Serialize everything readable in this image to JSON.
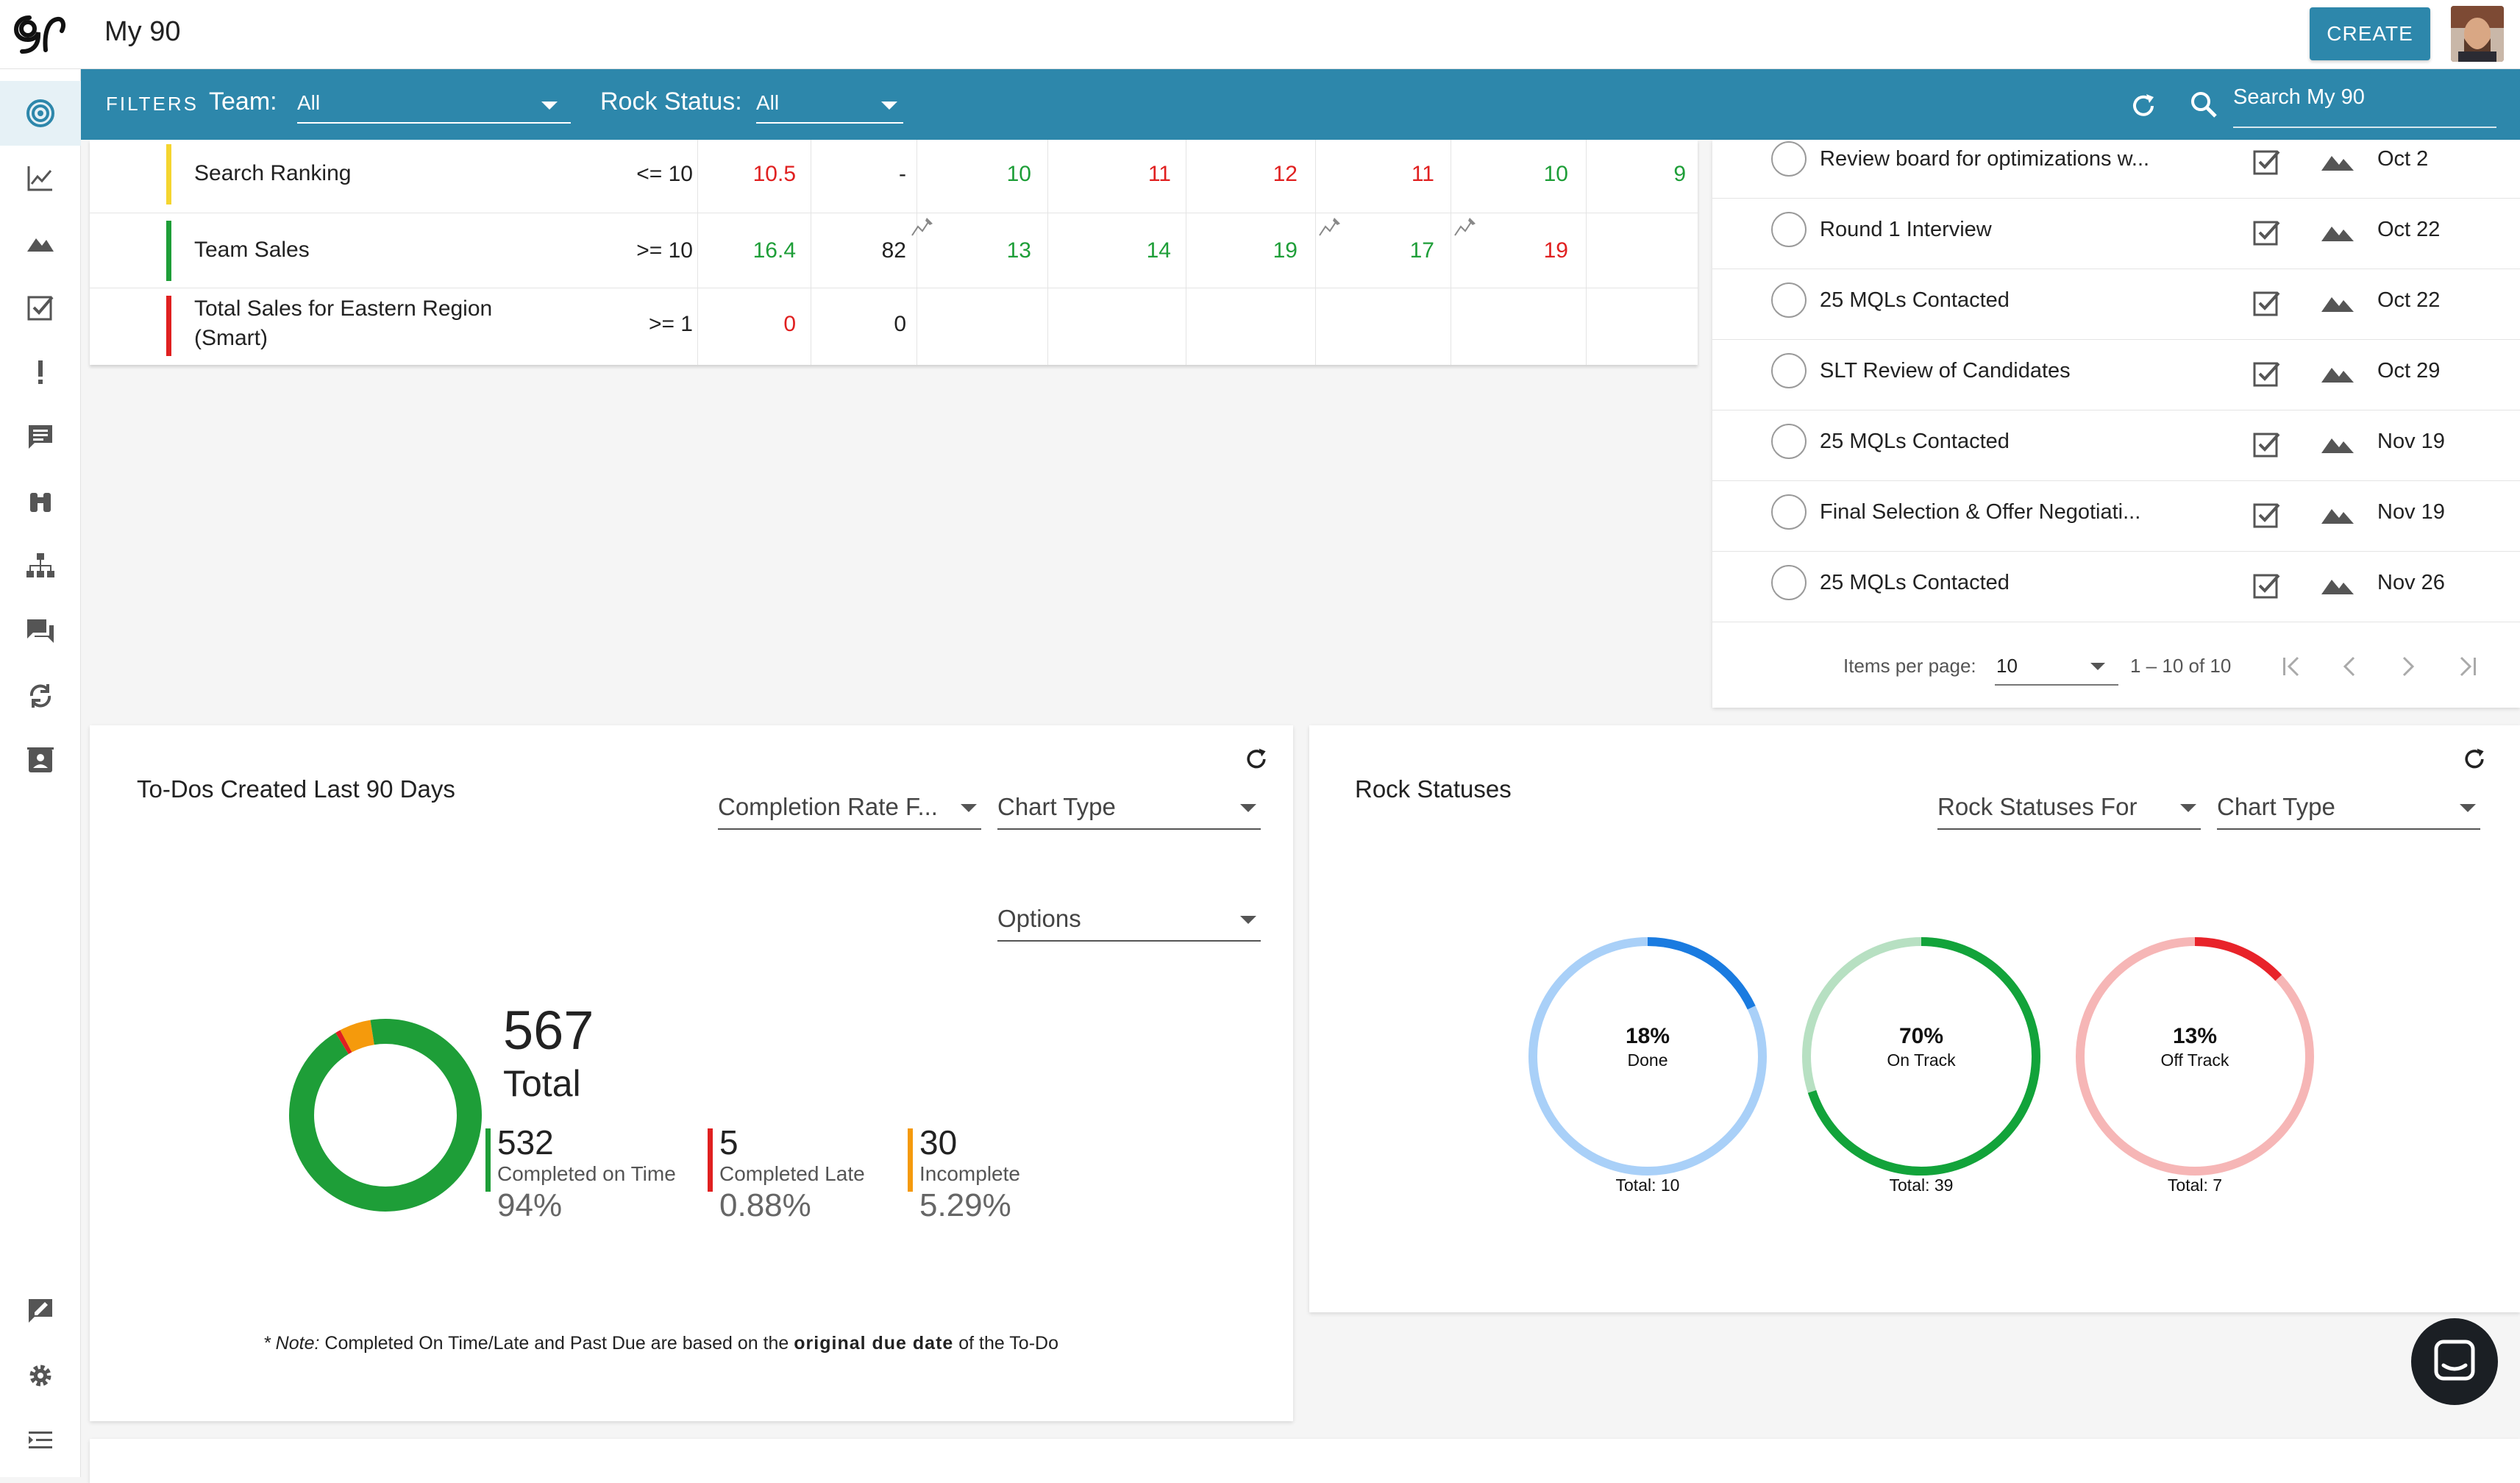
{
  "app": {
    "title": "My 90",
    "create_label": "CREATE",
    "search_placeholder": "Search My 90"
  },
  "colors": {
    "brand": "#2d87ab",
    "green": "#1e9e38",
    "red": "#e02020",
    "yellow": "#f5d52f",
    "orange": "#f59a0c"
  },
  "sidebar": {
    "items": [
      {
        "name": "my90",
        "icon": "target-icon",
        "active": true
      },
      {
        "name": "scorecard",
        "icon": "line-chart-icon"
      },
      {
        "name": "rocks",
        "icon": "mountain-icon"
      },
      {
        "name": "todos",
        "icon": "checkbox-icon"
      },
      {
        "name": "issues",
        "icon": "exclamation-icon"
      },
      {
        "name": "headlines",
        "icon": "message-icon"
      },
      {
        "name": "vision",
        "icon": "binoculars-icon"
      },
      {
        "name": "org-chart",
        "icon": "org-chart-icon"
      },
      {
        "name": "meetings",
        "icon": "chat-icon"
      },
      {
        "name": "process",
        "icon": "sync-icon"
      },
      {
        "name": "directory",
        "icon": "contact-card-icon"
      }
    ],
    "bottom": [
      {
        "name": "feedback",
        "icon": "feedback-icon"
      },
      {
        "name": "settings",
        "icon": "gear-icon"
      },
      {
        "name": "collapse",
        "icon": "menu-collapse-icon"
      }
    ]
  },
  "filters": {
    "label": "FILTERS",
    "team_label": "Team:",
    "team_value": "All",
    "rock_status_label": "Rock Status:",
    "rock_status_value": "All"
  },
  "scorecard": {
    "rows": [
      {
        "name": "Search Ranking",
        "goal": "<= 10",
        "status_color": "#f5d52f",
        "cells": [
          {
            "v": "10.5",
            "c": "red"
          },
          {
            "v": "-",
            "c": "neutral"
          },
          {
            "v": "10",
            "c": "green"
          },
          {
            "v": "11",
            "c": "red"
          },
          {
            "v": "12",
            "c": "red"
          },
          {
            "v": "11",
            "c": "red"
          },
          {
            "v": "10",
            "c": "green"
          },
          {
            "v": "9",
            "c": "green"
          }
        ]
      },
      {
        "name": "Team Sales",
        "goal": ">= 10",
        "status_color": "#1e9e38",
        "cells": [
          {
            "v": "16.4",
            "c": "green"
          },
          {
            "v": "82",
            "c": "neutral"
          },
          {
            "v": "13",
            "c": "green"
          },
          {
            "v": "14",
            "c": "green"
          },
          {
            "v": "19",
            "c": "green"
          },
          {
            "v": "17",
            "c": "green"
          },
          {
            "v": "19",
            "c": "red"
          },
          {
            "v": "",
            "c": "neutral"
          }
        ]
      },
      {
        "name": "Total Sales for Eastern Region",
        "name2": "(Smart)",
        "goal": ">= 1",
        "status_color": "#e02020",
        "cells": [
          {
            "v": "0",
            "c": "red"
          },
          {
            "v": "0",
            "c": "neutral"
          },
          {
            "v": "",
            "c": "neutral"
          },
          {
            "v": "",
            "c": "neutral"
          },
          {
            "v": "",
            "c": "neutral"
          },
          {
            "v": "",
            "c": "neutral"
          },
          {
            "v": "",
            "c": "neutral"
          },
          {
            "v": "",
            "c": "neutral"
          }
        ]
      }
    ]
  },
  "rocks": {
    "items": [
      {
        "title": "Review board for optimizations w...",
        "date": "Oct 2"
      },
      {
        "title": "Round 1 Interview",
        "date": "Oct 22"
      },
      {
        "title": "25 MQLs Contacted",
        "date": "Oct 22"
      },
      {
        "title": "SLT Review of Candidates",
        "date": "Oct 29"
      },
      {
        "title": "25 MQLs Contacted",
        "date": "Nov 19"
      },
      {
        "title": "Final Selection & Offer Negotiati...",
        "date": "Nov 19"
      },
      {
        "title": "25 MQLs Contacted",
        "date": "Nov 26"
      }
    ],
    "pagination": {
      "items_per_page_label": "Items per page:",
      "items_per_page": "10",
      "range": "1 – 10 of 10"
    }
  },
  "todos_card": {
    "title": "To-Dos Created Last 90 Days",
    "dropdown_completion": "Completion Rate F...",
    "dropdown_chart_type": "Chart Type",
    "dropdown_options": "Options",
    "total": "567",
    "total_label": "Total",
    "stats": [
      {
        "value": "532",
        "label": "Completed on Time",
        "pct": "94%",
        "color": "#1e9e38",
        "fraction": 0.9383
      },
      {
        "value": "5",
        "label": "Completed Late",
        "pct": "0.88%",
        "color": "#e02020",
        "fraction": 0.0088
      },
      {
        "value": "30",
        "label": "Incomplete",
        "pct": "5.29%",
        "color": "#f59a0c",
        "fraction": 0.0529
      }
    ],
    "note_prefix": "* Note:",
    "note_mid": " Completed On Time/Late and Past Due are based on the ",
    "note_bold": "original due date",
    "note_end": " of the To-Do"
  },
  "rock_statuses_card": {
    "title": "Rock Statuses",
    "dropdown_for": "Rock Statuses For",
    "dropdown_chart_type": "Chart Type",
    "rings": [
      {
        "pct": "18%",
        "label": "Done",
        "total": "Total: 10",
        "fraction": 0.18,
        "color": "#1a7be0",
        "track": "#a9d0f8"
      },
      {
        "pct": "70%",
        "label": "On Track",
        "total": "Total: 39",
        "fraction": 0.7,
        "color": "#12a33a",
        "track": "#b7e0c2"
      },
      {
        "pct": "13%",
        "label": "Off Track",
        "total": "Total: 7",
        "fraction": 0.13,
        "color": "#e8232a",
        "track": "#f6b6b6"
      }
    ]
  }
}
